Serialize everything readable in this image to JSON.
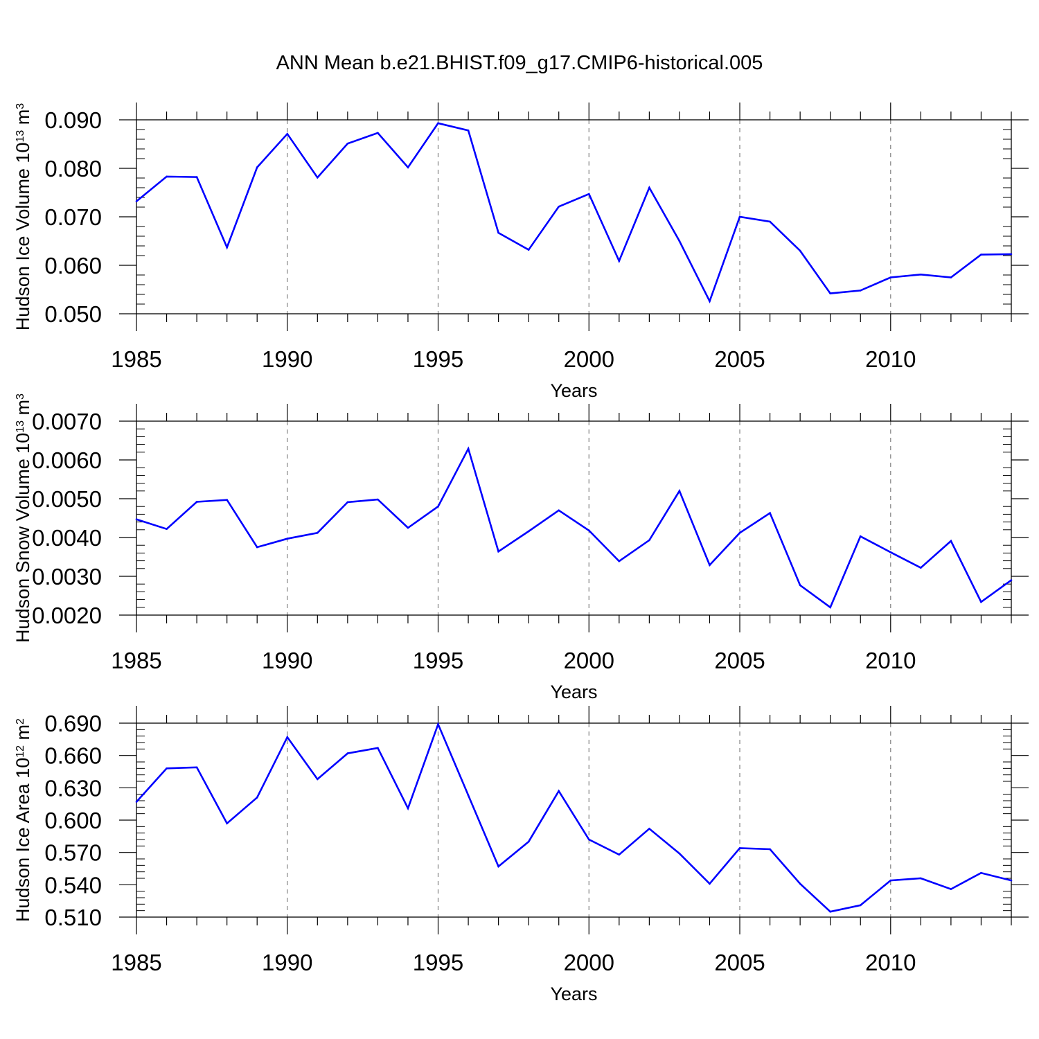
{
  "title": "ANN Mean b.e21.BHIST.f09_g17.CMIP6-historical.005",
  "colors": {
    "line": "#0000ff",
    "axis": "#000000",
    "grid": "#808080"
  },
  "chart_data": [
    {
      "type": "line",
      "ylabel": {
        "text": "Hudson Ice Volume 10",
        "exp": "13",
        "unit": " m",
        "unit_exp": "3"
      },
      "xlabel": "Years",
      "xlim": [
        1985,
        2014
      ],
      "ylim": [
        0.05,
        0.09
      ],
      "yticks": [
        0.05,
        0.06,
        0.07,
        0.08,
        0.09
      ],
      "ytick_labels": [
        "0.050",
        "0.060",
        "0.070",
        "0.080",
        "0.090"
      ],
      "xticks": [
        1985,
        1990,
        1995,
        2000,
        2005,
        2010
      ],
      "xtick_labels": [
        "1985",
        "1990",
        "1995",
        "2000",
        "2005",
        "2010"
      ],
      "gridlines_x": [
        1990,
        1995,
        2000,
        2005,
        2010
      ],
      "series": [
        {
          "name": "Hudson Ice Volume",
          "x": [
            1985,
            1986,
            1987,
            1988,
            1989,
            1990,
            1991,
            1992,
            1993,
            1994,
            1995,
            1996,
            1997,
            1998,
            1999,
            2000,
            2001,
            2002,
            2003,
            2004,
            2005,
            2006,
            2007,
            2008,
            2009,
            2010,
            2011,
            2012,
            2013,
            2014
          ],
          "values": [
            0.0732,
            0.0783,
            0.0782,
            0.0637,
            0.0802,
            0.0871,
            0.0781,
            0.0851,
            0.0873,
            0.0802,
            0.0893,
            0.0878,
            0.0667,
            0.0632,
            0.0721,
            0.0747,
            0.0609,
            0.076,
            0.065,
            0.0526,
            0.07,
            0.069,
            0.063,
            0.0542,
            0.0548,
            0.0575,
            0.0581,
            0.0575,
            0.0622,
            0.0623
          ]
        }
      ]
    },
    {
      "type": "line",
      "ylabel": {
        "text": "Hudson Snow Volume 10",
        "exp": "13",
        "unit": " m",
        "unit_exp": "3"
      },
      "xlabel": "Years",
      "xlim": [
        1985,
        2014
      ],
      "ylim": [
        0.002,
        0.007
      ],
      "yticks": [
        0.002,
        0.003,
        0.004,
        0.005,
        0.006,
        0.007
      ],
      "ytick_labels": [
        "0.0020",
        "0.0030",
        "0.0040",
        "0.0050",
        "0.0060",
        "0.0070"
      ],
      "xticks": [
        1985,
        1990,
        1995,
        2000,
        2005,
        2010
      ],
      "xtick_labels": [
        "1985",
        "1990",
        "1995",
        "2000",
        "2005",
        "2010"
      ],
      "gridlines_x": [
        1990,
        1995,
        2000,
        2005,
        2010
      ],
      "series": [
        {
          "name": "Hudson Snow Volume",
          "x": [
            1985,
            1986,
            1987,
            1988,
            1989,
            1990,
            1991,
            1992,
            1993,
            1994,
            1995,
            1996,
            1997,
            1998,
            1999,
            2000,
            2001,
            2002,
            2003,
            2004,
            2005,
            2006,
            2007,
            2008,
            2009,
            2010,
            2011,
            2012,
            2013,
            2014
          ],
          "values": [
            0.00447,
            0.00422,
            0.00492,
            0.00497,
            0.00375,
            0.00397,
            0.00412,
            0.00491,
            0.00498,
            0.00425,
            0.0048,
            0.00629,
            0.00364,
            0.00416,
            0.0047,
            0.00418,
            0.00339,
            0.00393,
            0.0052,
            0.00329,
            0.00412,
            0.00463,
            0.00277,
            0.0022,
            0.00403,
            0.00362,
            0.00322,
            0.00391,
            0.00234,
            0.0029
          ]
        }
      ]
    },
    {
      "type": "line",
      "ylabel": {
        "text": "Hudson Ice Area 10",
        "exp": "12",
        "unit": " m",
        "unit_exp": "2"
      },
      "xlabel": "Years",
      "xlim": [
        1985,
        2014
      ],
      "ylim": [
        0.51,
        0.69
      ],
      "yticks": [
        0.51,
        0.54,
        0.57,
        0.6,
        0.63,
        0.66,
        0.69
      ],
      "ytick_labels": [
        "0.510",
        "0.540",
        "0.570",
        "0.600",
        "0.630",
        "0.660",
        "0.690"
      ],
      "xticks": [
        1985,
        1990,
        1995,
        2000,
        2005,
        2010
      ],
      "xtick_labels": [
        "1985",
        "1990",
        "1995",
        "2000",
        "2005",
        "2010"
      ],
      "gridlines_x": [
        1990,
        1995,
        2000,
        2005,
        2010
      ],
      "series": [
        {
          "name": "Hudson Ice Area",
          "x": [
            1985,
            1986,
            1987,
            1988,
            1989,
            1990,
            1991,
            1992,
            1993,
            1994,
            1995,
            1996,
            1997,
            1998,
            1999,
            2000,
            2001,
            2002,
            2003,
            2004,
            2005,
            2006,
            2007,
            2008,
            2009,
            2010,
            2011,
            2012,
            2013,
            2014
          ],
          "values": [
            0.617,
            0.648,
            0.649,
            0.597,
            0.621,
            0.677,
            0.638,
            0.662,
            0.667,
            0.611,
            0.689,
            0.623,
            0.557,
            0.58,
            0.627,
            0.582,
            0.568,
            0.592,
            0.569,
            0.541,
            0.574,
            0.573,
            0.541,
            0.515,
            0.521,
            0.544,
            0.546,
            0.536,
            0.551,
            0.544
          ]
        }
      ]
    }
  ]
}
